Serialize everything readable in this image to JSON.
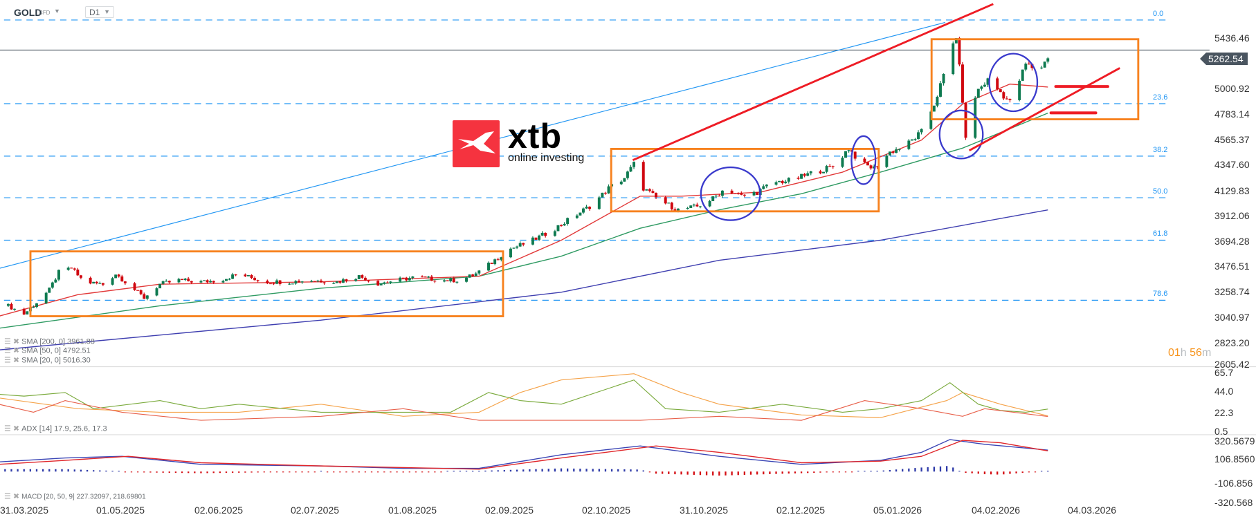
{
  "header": {
    "symbol": "GOLD",
    "instrument_type": "CFD",
    "timeframe": "D1"
  },
  "price_axis": [
    "5436.46",
    "5000.92",
    "4783.14",
    "4565.37",
    "4347.60",
    "4129.83",
    "3912.06",
    "3694.28",
    "3476.51",
    "3258.74",
    "3040.97",
    "2823.20",
    "2605.42"
  ],
  "current_price": "5262.54",
  "timer": {
    "hours": "01",
    "h": "h",
    "minutes": "56",
    "m": "m"
  },
  "fib_levels": [
    "0.0",
    "23.6",
    "38.2",
    "50.0",
    "61.8",
    "78.6"
  ],
  "legends": {
    "sma200": "SMA [200, 0] 3961.88",
    "sma50": "SMA [50, 0] 4792.51",
    "sma20": "SMA [20, 0] 5016.30",
    "adx": "ADX [14] 17.9, 25.6, 17.3",
    "macd": "MACD [20, 50, 9] 227.32097, 218.69801"
  },
  "adx_axis": [
    "65.7",
    "44.0",
    "22.3",
    "0.5"
  ],
  "macd_axis": [
    "320.5679",
    "106.8560",
    "-106.856",
    "-320.568"
  ],
  "dates": [
    "31.03.2025",
    "01.05.2025",
    "02.06.2025",
    "02.07.2025",
    "01.08.2025",
    "02.09.2025",
    "02.10.2025",
    "31.10.2025",
    "02.12.2025",
    "05.01.2026",
    "04.02.2026",
    "04.03.2026"
  ],
  "logo": {
    "brand": "xtb",
    "tagline": "online investing"
  },
  "colors": {
    "bull": "#0e7a50",
    "bear": "#d0070f",
    "sma200": "#3f3fb0",
    "sma50": "#2e9a62",
    "sma20": "#e23a3a",
    "fib": "#2196f3",
    "box": "#f7821f",
    "circle": "#3a3acc",
    "trend": "#ee1c25",
    "accent": "#f7941d"
  },
  "chart_data": {
    "type": "candlestick",
    "symbol": "GOLD",
    "timeframe": "D1",
    "ylim": [
      2605.42,
      5600
    ],
    "close_path": [
      [
        "2025-03-26",
        3139
      ],
      [
        "2025-03-31",
        3070
      ],
      [
        "2025-04-04",
        3167
      ],
      [
        "2025-04-08",
        3277
      ],
      [
        "2025-04-11",
        3427
      ],
      [
        "2025-04-15",
        3462
      ],
      [
        "2025-04-19",
        3345
      ],
      [
        "2025-04-25",
        3324
      ],
      [
        "2025-04-29",
        3414
      ],
      [
        "2025-05-03",
        3324
      ],
      [
        "2025-05-08",
        3208
      ],
      [
        "2025-05-13",
        3325
      ],
      [
        "2025-05-19",
        3359
      ],
      [
        "2025-05-26",
        3345
      ],
      [
        "2025-06-01",
        3359
      ],
      [
        "2025-06-07",
        3414
      ],
      [
        "2025-06-15",
        3345
      ],
      [
        "2025-06-23",
        3345
      ],
      [
        "2025-06-30",
        3359
      ],
      [
        "2025-07-08",
        3345
      ],
      [
        "2025-07-15",
        3393
      ],
      [
        "2025-07-21",
        3331
      ],
      [
        "2025-07-27",
        3359
      ],
      [
        "2025-08-02",
        3386
      ],
      [
        "2025-08-10",
        3359
      ],
      [
        "2025-08-16",
        3359
      ],
      [
        "2025-08-21",
        3414
      ],
      [
        "2025-08-26",
        3510
      ],
      [
        "2025-08-31",
        3620
      ],
      [
        "2025-09-07",
        3689
      ],
      [
        "2025-09-14",
        3785
      ],
      [
        "2025-09-21",
        3908
      ],
      [
        "2025-09-27",
        4011
      ],
      [
        "2025-10-02",
        4149
      ],
      [
        "2025-10-07",
        4238
      ],
      [
        "2025-10-10",
        4355
      ],
      [
        "2025-10-13",
        4149
      ],
      [
        "2025-10-18",
        4046
      ],
      [
        "2025-10-24",
        3963
      ],
      [
        "2025-10-30",
        3991
      ],
      [
        "2025-11-04",
        4059
      ],
      [
        "2025-11-08",
        4149
      ],
      [
        "2025-11-13",
        4080
      ],
      [
        "2025-11-18",
        4114
      ],
      [
        "2025-11-23",
        4197
      ],
      [
        "2025-11-29",
        4217
      ],
      [
        "2025-12-06",
        4286
      ],
      [
        "2025-12-12",
        4334
      ],
      [
        "2025-12-17",
        4492
      ],
      [
        "2025-12-21",
        4355
      ],
      [
        "2025-12-25",
        4320
      ],
      [
        "2025-12-30",
        4458
      ],
      [
        "2026-01-04",
        4513
      ],
      [
        "2026-01-09",
        4630
      ],
      [
        "2026-01-13",
        4870
      ],
      [
        "2026-01-16",
        5110
      ],
      [
        "2026-01-19",
        5385
      ],
      [
        "2026-01-20",
        5454
      ],
      [
        "2026-01-22",
        4904
      ],
      [
        "2026-01-23",
        4561
      ],
      [
        "2026-01-25",
        4870
      ],
      [
        "2026-01-27",
        4993
      ],
      [
        "2026-01-30",
        5076
      ],
      [
        "2026-02-03",
        4973
      ],
      [
        "2026-02-06",
        4884
      ],
      [
        "2026-02-09",
        5076
      ],
      [
        "2026-02-11",
        5213
      ],
      [
        "2026-02-15",
        5158
      ],
      [
        "2026-02-18",
        5262.54
      ]
    ],
    "sma200": [
      [
        "2025-03-23",
        2761
      ],
      [
        "2025-07-03",
        3016
      ],
      [
        "2025-09-17",
        3256
      ],
      [
        "2025-11-06",
        3530
      ],
      [
        "2025-12-27",
        3702
      ],
      [
        "2026-02-18",
        3961.88
      ]
    ],
    "sma50": [
      [
        "2025-03-23",
        2947
      ],
      [
        "2025-05-13",
        3139
      ],
      [
        "2025-07-03",
        3290
      ],
      [
        "2025-08-22",
        3393
      ],
      [
        "2025-09-17",
        3565
      ],
      [
        "2025-10-12",
        3805
      ],
      [
        "2025-11-06",
        3963
      ],
      [
        "2025-12-02",
        4101
      ],
      [
        "2025-12-27",
        4286
      ],
      [
        "2026-01-22",
        4492
      ],
      [
        "2026-02-18",
        4792.51
      ]
    ],
    "sma20": [
      [
        "2025-03-23",
        3050
      ],
      [
        "2025-04-17",
        3235
      ],
      [
        "2025-05-13",
        3325
      ],
      [
        "2025-07-03",
        3345
      ],
      [
        "2025-08-22",
        3393
      ],
      [
        "2025-09-17",
        3702
      ],
      [
        "2025-10-12",
        4080
      ],
      [
        "2025-10-25",
        4080
      ],
      [
        "2025-11-19",
        4114
      ],
      [
        "2025-12-15",
        4286
      ],
      [
        "2026-01-09",
        4561
      ],
      [
        "2026-01-22",
        4870
      ],
      [
        "2026-02-06",
        5042
      ],
      [
        "2026-02-18",
        5016.3
      ]
    ],
    "adx": {
      "ylim": [
        0.5,
        65.7
      ],
      "adx": [
        [
          "2025-03-23",
          38
        ],
        [
          "2025-04-17",
          26
        ],
        [
          "2025-05-13",
          22
        ],
        [
          "2025-06-07",
          22
        ],
        [
          "2025-07-03",
          31
        ],
        [
          "2025-07-29",
          17.5
        ],
        [
          "2025-08-22",
          22
        ],
        [
          "2025-09-04",
          44
        ],
        [
          "2025-09-17",
          58
        ],
        [
          "2025-10-10",
          65
        ],
        [
          "2025-10-25",
          44
        ],
        [
          "2025-11-06",
          31
        ],
        [
          "2025-12-02",
          19
        ],
        [
          "2025-12-27",
          16
        ],
        [
          "2026-01-17",
          35
        ],
        [
          "2026-01-22",
          44
        ],
        [
          "2026-02-03",
          31
        ],
        [
          "2026-02-18",
          17.9
        ]
      ],
      "plus_di": [
        [
          "2025-03-23",
          42
        ],
        [
          "2025-03-31",
          40
        ],
        [
          "2025-04-13",
          44
        ],
        [
          "2025-04-22",
          26
        ],
        [
          "2025-05-13",
          35
        ],
        [
          "2025-05-26",
          26
        ],
        [
          "2025-06-07",
          31
        ],
        [
          "2025-07-03",
          22
        ],
        [
          "2025-07-29",
          22
        ],
        [
          "2025-08-13",
          22
        ],
        [
          "2025-08-25",
          44
        ],
        [
          "2025-09-04",
          35
        ],
        [
          "2025-09-17",
          31
        ],
        [
          "2025-10-10",
          58
        ],
        [
          "2025-10-20",
          26
        ],
        [
          "2025-11-06",
          22
        ],
        [
          "2025-11-26",
          31
        ],
        [
          "2025-12-15",
          22
        ],
        [
          "2025-12-27",
          26
        ],
        [
          "2026-01-09",
          35
        ],
        [
          "2026-01-18",
          55
        ],
        [
          "2026-01-27",
          31
        ],
        [
          "2026-02-03",
          24
        ],
        [
          "2026-02-11",
          22
        ],
        [
          "2026-02-18",
          25.6
        ]
      ],
      "minus_di": [
        [
          "2025-03-23",
          31
        ],
        [
          "2025-04-03",
          22
        ],
        [
          "2025-04-13",
          35
        ],
        [
          "2025-05-01",
          22
        ],
        [
          "2025-05-26",
          13
        ],
        [
          "2025-07-03",
          17.5
        ],
        [
          "2025-07-29",
          26
        ],
        [
          "2025-08-22",
          13
        ],
        [
          "2025-09-17",
          13
        ],
        [
          "2025-10-12",
          13
        ],
        [
          "2025-11-06",
          17.5
        ],
        [
          "2025-12-02",
          13
        ],
        [
          "2025-12-22",
          35
        ],
        [
          "2026-01-09",
          26
        ],
        [
          "2026-01-22",
          17.5
        ],
        [
          "2026-01-29",
          26
        ],
        [
          "2026-02-18",
          17.3
        ]
      ]
    },
    "macd": {
      "ylim": [
        -320.568,
        320.5679
      ],
      "macd": [
        [
          "2025-03-23",
          104
        ],
        [
          "2025-04-13",
          146
        ],
        [
          "2025-05-01",
          162
        ],
        [
          "2025-05-26",
          79
        ],
        [
          "2025-07-03",
          62
        ],
        [
          "2025-07-29",
          37
        ],
        [
          "2025-08-22",
          37
        ],
        [
          "2025-09-17",
          179
        ],
        [
          "2025-10-12",
          271
        ],
        [
          "2025-11-06",
          162
        ],
        [
          "2025-12-02",
          79
        ],
        [
          "2025-12-27",
          121
        ],
        [
          "2026-01-09",
          204
        ],
        [
          "2026-01-18",
          337
        ],
        [
          "2026-01-29",
          287
        ],
        [
          "2026-02-18",
          227.32
        ]
      ],
      "signal": [
        [
          "2025-03-23",
          79
        ],
        [
          "2025-04-13",
          121
        ],
        [
          "2025-05-03",
          162
        ],
        [
          "2025-05-26",
          96
        ],
        [
          "2025-07-03",
          62
        ],
        [
          "2025-07-29",
          46
        ],
        [
          "2025-08-22",
          29
        ],
        [
          "2025-09-17",
          146
        ],
        [
          "2025-10-17",
          271
        ],
        [
          "2025-11-06",
          204
        ],
        [
          "2025-12-02",
          96
        ],
        [
          "2025-12-27",
          112
        ],
        [
          "2026-01-09",
          162
        ],
        [
          "2026-01-22",
          329
        ],
        [
          "2026-02-03",
          304
        ],
        [
          "2026-02-18",
          218.7
        ]
      ]
    }
  }
}
